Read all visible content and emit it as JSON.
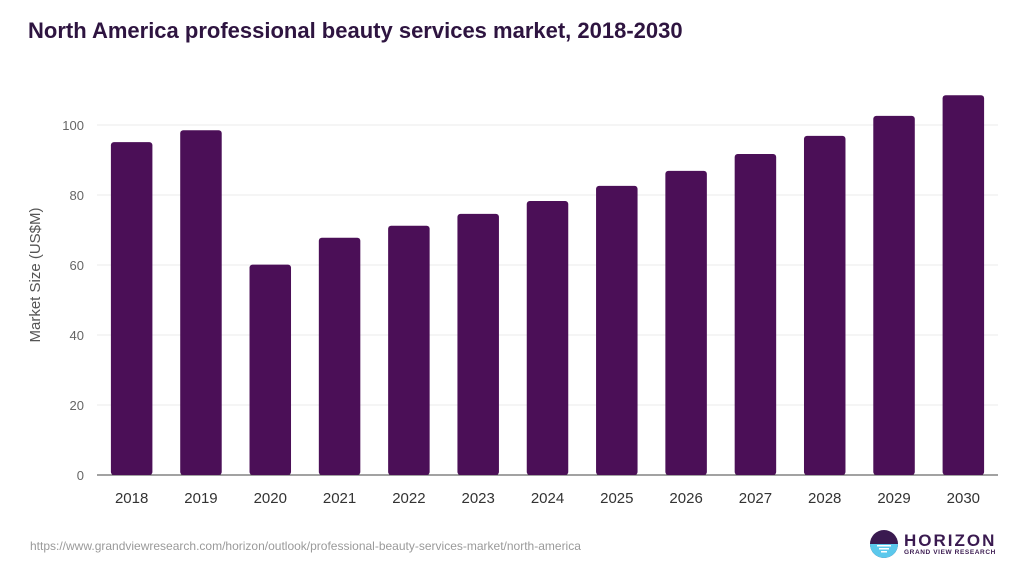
{
  "chart_data": {
    "type": "bar",
    "title": "North America professional beauty services market, 2018-2030",
    "xlabel": "",
    "ylabel": "Market Size (US$M)",
    "categories": [
      "2018",
      "2019",
      "2020",
      "2021",
      "2022",
      "2023",
      "2024",
      "2025",
      "2026",
      "2027",
      "2028",
      "2029",
      "2030"
    ],
    "values": [
      95.1,
      98.5,
      60.1,
      67.8,
      71.2,
      74.6,
      78.3,
      82.6,
      86.9,
      91.7,
      96.9,
      102.6,
      108.5
    ],
    "ylim": [
      0,
      110
    ],
    "yticks": [
      0,
      20,
      40,
      60,
      80,
      100
    ],
    "grid": true,
    "legend": "none",
    "bar_color": "#4b0f57"
  },
  "source_url": "https://www.grandviewresearch.com/horizon/outlook/professional-beauty-services-market/north-america",
  "logo": {
    "main": "HORIZON",
    "sub": "GRAND VIEW RESEARCH"
  }
}
